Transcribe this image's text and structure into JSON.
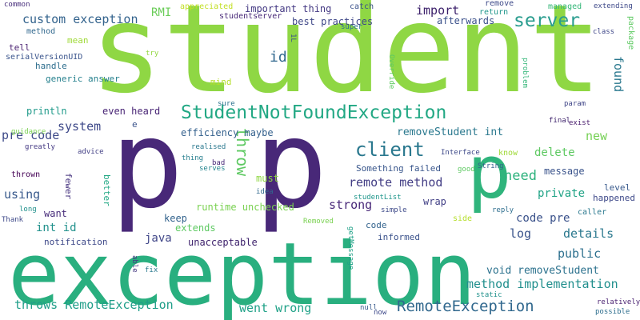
{
  "background": "#ffffff",
  "words": [
    {
      "text": "student",
      "color": "#8fd744"
    },
    {
      "text": "p",
      "color": "#482878"
    },
    {
      "text": "p",
      "color": "#482878"
    },
    {
      "text": "exception",
      "color": "#29af7f"
    },
    {
      "text": "p",
      "color": "#2fb47c"
    },
    {
      "text": "StudentNotFoundException",
      "color": "#22a884"
    },
    {
      "text": "client",
      "color": "#2a788e"
    },
    {
      "text": "server",
      "color": "#2a9d8f"
    },
    {
      "text": "throw",
      "color": "#5ec962"
    },
    {
      "text": "RemoteException",
      "color": "#31688e"
    },
    {
      "text": "custom exception",
      "color": "#33638d"
    },
    {
      "text": "id",
      "color": "#31688e"
    },
    {
      "text": "import",
      "color": "#3b1f6a"
    },
    {
      "text": "system",
      "color": "#3e4989"
    },
    {
      "text": "pre code",
      "color": "#3e4a89"
    },
    {
      "text": "need",
      "color": "#2db27d"
    },
    {
      "text": "new",
      "color": "#75d054"
    },
    {
      "text": "removeStudent int",
      "color": "#2a788e"
    },
    {
      "text": "remote method",
      "color": "#433e85"
    },
    {
      "text": "code pre",
      "color": "#3b528b"
    },
    {
      "text": "strong",
      "color": "#482878"
    },
    {
      "text": "using",
      "color": "#38598c"
    },
    {
      "text": "int id",
      "color": "#21918c"
    },
    {
      "text": "throws RemoteException",
      "color": "#1f9e89"
    },
    {
      "text": "method implementation",
      "color": "#218f8d"
    },
    {
      "text": "void removeStudent",
      "color": "#2c728e"
    },
    {
      "text": "went wrong",
      "color": "#1fa187"
    },
    {
      "text": "details",
      "color": "#2a788e"
    },
    {
      "text": "public",
      "color": "#2d708e"
    },
    {
      "text": "private",
      "color": "#20a386"
    },
    {
      "text": "delete",
      "color": "#5ec962"
    },
    {
      "text": "log",
      "color": "#3a548c"
    },
    {
      "text": "found",
      "color": "#2a788e"
    },
    {
      "text": "java",
      "color": "#404688"
    },
    {
      "text": "RMI",
      "color": "#6ccd5a"
    },
    {
      "text": "best practices",
      "color": "#3f4788"
    },
    {
      "text": "important thing",
      "color": "#443983"
    },
    {
      "text": "afterwards",
      "color": "#3b518b"
    },
    {
      "text": "message",
      "color": "#3a538b"
    },
    {
      "text": "efficiency maybe",
      "color": "#34618d"
    },
    {
      "text": "println",
      "color": "#1f9a8a"
    },
    {
      "text": "even heard",
      "color": "#482475"
    },
    {
      "text": "runtime unchecked",
      "color": "#7ad151"
    },
    {
      "text": "extends",
      "color": "#5ec962"
    },
    {
      "text": "keep",
      "color": "#33638d"
    },
    {
      "text": "unacceptable",
      "color": "#3b1f6a"
    },
    {
      "text": "want",
      "color": "#472c7a"
    },
    {
      "text": "handle",
      "color": "#2e6e8e"
    },
    {
      "text": "generic answer",
      "color": "#26818e"
    },
    {
      "text": "notification",
      "color": "#3e4989"
    },
    {
      "text": "informed",
      "color": "#3b528b"
    },
    {
      "text": "code",
      "color": "#33638d"
    },
    {
      "text": "wrap",
      "color": "#424086"
    },
    {
      "text": "Something failed",
      "color": "#39568c"
    },
    {
      "text": "must",
      "color": "#8fd744"
    },
    {
      "text": "level",
      "color": "#38598c"
    },
    {
      "text": "happened",
      "color": "#3e4989"
    },
    {
      "text": "caller",
      "color": "#2a788e"
    },
    {
      "text": "better",
      "color": "#22a884"
    },
    {
      "text": "fewer",
      "color": "#46337f"
    },
    {
      "text": "method",
      "color": "#31688e"
    },
    {
      "text": "tell",
      "color": "#481f70"
    },
    {
      "text": "serialVersionUID",
      "color": "#3a548c"
    },
    {
      "text": "mean",
      "color": "#a0da39"
    },
    {
      "text": "mind",
      "color": "#b5de2b"
    },
    {
      "text": "studentserver",
      "color": "#482878"
    },
    {
      "text": "appreciated",
      "color": "#c2df23"
    },
    {
      "text": "catch",
      "color": "#3b528b"
    },
    {
      "text": "super",
      "color": "#2c728e"
    },
    {
      "text": "remove",
      "color": "#3e4a89"
    },
    {
      "text": "return",
      "color": "#1f968b"
    },
    {
      "text": "managed",
      "color": "#35b779"
    },
    {
      "text": "extending",
      "color": "#3e4989"
    },
    {
      "text": "class",
      "color": "#3f4788"
    },
    {
      "text": "package",
      "color": "#5ec962"
    },
    {
      "text": "common",
      "color": "#472d7b"
    },
    {
      "text": "1L",
      "color": "#3b528b"
    },
    {
      "text": "try",
      "color": "#93d741"
    },
    {
      "text": "Override",
      "color": "#5ec962"
    },
    {
      "text": "problem",
      "color": "#35b779"
    },
    {
      "text": "sure",
      "color": "#2c728e"
    },
    {
      "text": "e",
      "color": "#3a538b"
    },
    {
      "text": "guidance",
      "color": "#7ad151"
    },
    {
      "text": "greatly",
      "color": "#443983"
    },
    {
      "text": "advice",
      "color": "#423f85"
    },
    {
      "text": "thing",
      "color": "#277f8e"
    },
    {
      "text": "realised",
      "color": "#2a788e"
    },
    {
      "text": "bad",
      "color": "#482878"
    },
    {
      "text": "serves",
      "color": "#25858e"
    },
    {
      "text": "param",
      "color": "#404688"
    },
    {
      "text": "final",
      "color": "#3b1f6a"
    },
    {
      "text": "exist",
      "color": "#481a6c"
    },
    {
      "text": "know",
      "color": "#a0da39"
    },
    {
      "text": "good",
      "color": "#5ec962"
    },
    {
      "text": "Interface",
      "color": "#3e4989"
    },
    {
      "text": "String",
      "color": "#34618d"
    },
    {
      "text": "idea",
      "color": "#31688e"
    },
    {
      "text": "thrown",
      "color": "#440154"
    },
    {
      "text": "long",
      "color": "#21918c"
    },
    {
      "text": "Thank",
      "color": "#3e4989"
    },
    {
      "text": "studentList",
      "color": "#1f968b"
    },
    {
      "text": "simple",
      "color": "#3e4a89"
    },
    {
      "text": "reply",
      "color": "#2e6e8e"
    },
    {
      "text": "side",
      "color": "#b5de2b"
    },
    {
      "text": "Removed",
      "color": "#7ad151"
    },
    {
      "text": "getMessage",
      "color": "#1fa187"
    },
    {
      "text": "able",
      "color": "#453882"
    },
    {
      "text": "fix",
      "color": "#2a788e"
    },
    {
      "text": "null",
      "color": "#38598c"
    },
    {
      "text": "now",
      "color": "#3e4989"
    },
    {
      "text": "static",
      "color": "#21918c"
    },
    {
      "text": "relatively",
      "color": "#481f70"
    },
    {
      "text": "possible",
      "color": "#2e6e8e"
    }
  ]
}
